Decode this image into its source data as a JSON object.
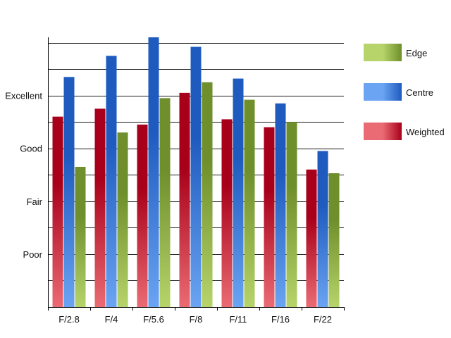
{
  "chart_data": {
    "type": "bar",
    "categories": [
      "F/2.8",
      "F/4",
      "F/5.6",
      "F/8",
      "F/11",
      "F/16",
      "F/22"
    ],
    "series": [
      {
        "name": "Weighted",
        "values": [
          3.6,
          3.75,
          3.45,
          4.05,
          3.55,
          3.4,
          2.6
        ]
      },
      {
        "name": "Centre",
        "values": [
          4.35,
          4.75,
          5.1,
          4.92,
          4.32,
          3.85,
          2.95
        ]
      },
      {
        "name": "Edge",
        "values": [
          2.65,
          3.3,
          3.95,
          4.25,
          3.92,
          3.5,
          2.53
        ]
      }
    ],
    "y_tick_labels": [
      {
        "value": 1,
        "label": "Poor"
      },
      {
        "value": 2,
        "label": "Fair"
      },
      {
        "value": 3,
        "label": "Good"
      },
      {
        "value": 4,
        "label": "Excellent"
      }
    ],
    "ylim": [
      0,
      5.1
    ],
    "grid_step": 0.5,
    "legend_order": [
      "Edge",
      "Centre",
      "Weighted"
    ],
    "legend_position": "right",
    "colors": {
      "Weighted": {
        "dark": "#a8001a",
        "light": "#ea6b73"
      },
      "Centre": {
        "dark": "#1f5bbf",
        "light": "#6aa4f2"
      },
      "Edge": {
        "dark": "#6f8f2c",
        "light": "#b6d46a"
      }
    },
    "grid": true
  }
}
